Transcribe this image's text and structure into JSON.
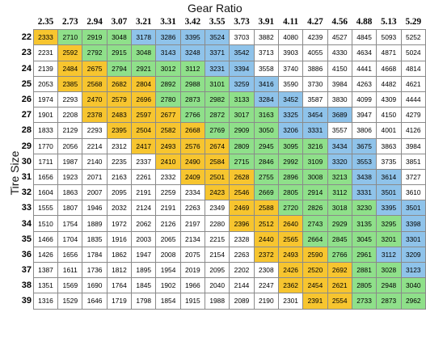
{
  "title": "Gear Ratio",
  "ylabel": "Tire Size",
  "colors": {
    "yellow": "#f7c52f",
    "green": "#8fe08a",
    "blue": "#8fc3ea",
    "white": "#ffffff"
  },
  "gear_ratios": [
    "2.35",
    "2.73",
    "2.94",
    "3.07",
    "3.21",
    "3.31",
    "3.42",
    "3.55",
    "3.73",
    "3.91",
    "4.11",
    "4.27",
    "4.56",
    "4.88",
    "5.13",
    "5.29"
  ],
  "rows": [
    {
      "size": "22",
      "values": [
        "2333",
        "2710",
        "2919",
        "3048",
        "3178",
        "3286",
        "3395",
        "3524",
        "3703",
        "3882",
        "4080",
        "4239",
        "4527",
        "4845",
        "5093",
        "5252"
      ],
      "colors": "ygggbbbbwwwwwwww"
    },
    {
      "size": "23",
      "values": [
        "2231",
        "2592",
        "2792",
        "2915",
        "3048",
        "3143",
        "3248",
        "3371",
        "3542",
        "3713",
        "3903",
        "4055",
        "4330",
        "4634",
        "4871",
        "5024"
      ],
      "colors": "wygggbbbbwwwwwww"
    },
    {
      "size": "24",
      "values": [
        "2139",
        "2484",
        "2675",
        "2794",
        "2921",
        "3012",
        "3112",
        "3231",
        "3394",
        "3558",
        "3740",
        "3886",
        "4150",
        "4441",
        "4668",
        "4814"
      ],
      "colors": "wyyggggbbwwwwwww"
    },
    {
      "size": "25",
      "values": [
        "2053",
        "2385",
        "2568",
        "2682",
        "2804",
        "2892",
        "2988",
        "3101",
        "3259",
        "3416",
        "3590",
        "3730",
        "3984",
        "4263",
        "4482",
        "4621"
      ],
      "colors": "wyyyygggbbwwwwww"
    },
    {
      "size": "26",
      "values": [
        "1974",
        "2293",
        "2470",
        "2579",
        "2696",
        "2780",
        "2873",
        "2982",
        "3133",
        "3284",
        "3452",
        "3587",
        "3830",
        "4099",
        "4309",
        "4444"
      ],
      "colors": "wwyyyggggbbwwwww"
    },
    {
      "size": "27",
      "values": [
        "1901",
        "2208",
        "2378",
        "2483",
        "2597",
        "2677",
        "2766",
        "2872",
        "3017",
        "3163",
        "3325",
        "3454",
        "3689",
        "3947",
        "4150",
        "4279"
      ],
      "colors": "wwyyyyggggbbbwww"
    },
    {
      "size": "28",
      "values": [
        "1833",
        "2129",
        "2293",
        "2395",
        "2504",
        "2582",
        "2668",
        "2769",
        "2909",
        "3050",
        "3206",
        "3331",
        "3557",
        "3806",
        "4001",
        "4126"
      ],
      "colors": "wwwyyyygggbbwwww"
    },
    {
      "size": "29",
      "values": [
        "1770",
        "2056",
        "2214",
        "2312",
        "2417",
        "2493",
        "2576",
        "2674",
        "2809",
        "2945",
        "3095",
        "3216",
        "3434",
        "3675",
        "3863",
        "3984"
      ],
      "colors": "wwwwyyyyggggbbww"
    },
    {
      "size": "30",
      "values": [
        "1711",
        "1987",
        "2140",
        "2235",
        "2337",
        "2410",
        "2490",
        "2584",
        "2715",
        "2846",
        "2992",
        "3109",
        "3320",
        "3553",
        "3735",
        "3851"
      ],
      "colors": "wwwwwyyyggggbbww"
    },
    {
      "size": "31",
      "values": [
        "1656",
        "1923",
        "2071",
        "2163",
        "2261",
        "2332",
        "2409",
        "2501",
        "2628",
        "2755",
        "2896",
        "3008",
        "3213",
        "3438",
        "3614",
        "3727"
      ],
      "colors": "wwwwwwyyyggggbbw"
    },
    {
      "size": "32",
      "values": [
        "1604",
        "1863",
        "2007",
        "2095",
        "2191",
        "2259",
        "2334",
        "2423",
        "2546",
        "2669",
        "2805",
        "2914",
        "3112",
        "3331",
        "3501",
        "3610"
      ],
      "colors": "wwwwwwwyyggggbbw"
    },
    {
      "size": "33",
      "values": [
        "1555",
        "1807",
        "1946",
        "2032",
        "2124",
        "2191",
        "2263",
        "2349",
        "2469",
        "2588",
        "2720",
        "2826",
        "3018",
        "3230",
        "3395",
        "3501"
      ],
      "colors": "wwwwwwwwyyggggbb"
    },
    {
      "size": "34",
      "values": [
        "1510",
        "1754",
        "1889",
        "1972",
        "2062",
        "2126",
        "2197",
        "2280",
        "2396",
        "2512",
        "2640",
        "2743",
        "2929",
        "3135",
        "3295",
        "3398"
      ],
      "colors": "wwwwwwwwyyyggggb"
    },
    {
      "size": "35",
      "values": [
        "1466",
        "1704",
        "1835",
        "1916",
        "2003",
        "2065",
        "2134",
        "2215",
        "2328",
        "2440",
        "2565",
        "2664",
        "2845",
        "3045",
        "3201",
        "3301"
      ],
      "colors": "wwwwwwwwwyyggggb"
    },
    {
      "size": "36",
      "values": [
        "1426",
        "1656",
        "1784",
        "1862",
        "1947",
        "2008",
        "2075",
        "2154",
        "2263",
        "2372",
        "2493",
        "2590",
        "2766",
        "2961",
        "3112",
        "3209"
      ],
      "colors": "wwwwwwwwwyyyggbb"
    },
    {
      "size": "37",
      "values": [
        "1387",
        "1611",
        "1736",
        "1812",
        "1895",
        "1954",
        "2019",
        "2095",
        "2202",
        "2308",
        "2426",
        "2520",
        "2692",
        "2881",
        "3028",
        "3123"
      ],
      "colors": "wwwwwwwwwwyyyggb"
    },
    {
      "size": "38",
      "values": [
        "1351",
        "1569",
        "1690",
        "1764",
        "1845",
        "1902",
        "1966",
        "2040",
        "2144",
        "2247",
        "2362",
        "2454",
        "2621",
        "2805",
        "2948",
        "3040"
      ],
      "colors": "wwwwwwwwwwyyyggg"
    },
    {
      "size": "39",
      "values": [
        "1316",
        "1529",
        "1646",
        "1719",
        "1798",
        "1854",
        "1915",
        "1988",
        "2089",
        "2190",
        "2301",
        "2391",
        "2554",
        "2733",
        "2873",
        "2962"
      ],
      "colors": "wwwwwwwwwwwyyggg"
    }
  ]
}
